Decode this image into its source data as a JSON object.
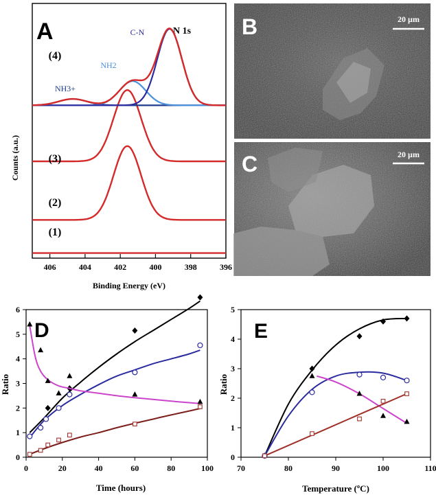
{
  "chart_data": [
    {
      "panel": "A",
      "type": "line",
      "title": "N 1s",
      "xlabel": "Binding Energy (eV)",
      "ylabel": "Counts (a.u.)",
      "xlim": [
        407,
        396
      ],
      "x_ticks": [
        "406",
        "404",
        "402",
        "400",
        "398",
        "396"
      ],
      "x_tick_values": [
        406,
        404,
        402,
        400,
        398,
        396
      ],
      "spectra": [
        {
          "label": "(1)",
          "baseline": 0.02,
          "peaks": []
        },
        {
          "label": "(2)",
          "baseline": 0.15,
          "peaks": [
            {
              "center": 401.6,
              "height": 0.29,
              "sigma": 0.78
            }
          ]
        },
        {
          "label": "(3)",
          "baseline": 0.38,
          "peaks": [
            {
              "center": 401.6,
              "height": 0.28,
              "sigma": 0.78
            }
          ]
        },
        {
          "label": "(4)",
          "baseline": 0.6,
          "peaks": [
            {
              "name": "NH3+",
              "center": 404.7,
              "height": 0.025,
              "sigma": 0.8
            },
            {
              "name": "NH2",
              "center": 401.3,
              "height": 0.095,
              "sigma": 0.75
            },
            {
              "name": "C-N",
              "center": 399.2,
              "height": 0.3,
              "sigma": 0.7
            }
          ]
        }
      ],
      "peak_labels": [
        "NH3+",
        "NH2",
        "C-N"
      ],
      "colors": {
        "envelope": "#d42a2a",
        "nh3": "#1e3a8a",
        "nh2": "#4a90d9",
        "cn": "#2b2ba0"
      }
    },
    {
      "panel": "D",
      "type": "line",
      "xlabel": "Time (hours)",
      "ylabel": "Ratio",
      "xlim": [
        0,
        100
      ],
      "ylim": [
        0,
        6
      ],
      "x_ticks": [
        "0",
        "20",
        "40",
        "60",
        "80",
        "100"
      ],
      "y_ticks": [
        "0",
        "1",
        "2",
        "3",
        "4",
        "5",
        "6"
      ],
      "series": [
        {
          "marker": "diamond-filled",
          "color": "#000000",
          "points": [
            [
              2,
              0.85
            ],
            [
              12,
              2.0
            ],
            [
              24,
              2.8
            ],
            [
              60,
              5.15
            ],
            [
              96,
              6.5
            ]
          ],
          "fit": [
            [
              2,
              1.0
            ],
            [
              10,
              1.6
            ],
            [
              20,
              2.4
            ],
            [
              30,
              3.05
            ],
            [
              40,
              3.65
            ],
            [
              50,
              4.2
            ],
            [
              60,
              4.7
            ],
            [
              70,
              5.15
            ],
            [
              80,
              5.6
            ],
            [
              90,
              6.05
            ],
            [
              96,
              6.35
            ]
          ]
        },
        {
          "marker": "circle-open",
          "color": "#2b2ba0",
          "points": [
            [
              2,
              0.85
            ],
            [
              8,
              1.2
            ],
            [
              11,
              1.55
            ],
            [
              18,
              2.0
            ],
            [
              24,
              2.55
            ],
            [
              60,
              3.45
            ],
            [
              96,
              4.55
            ]
          ],
          "fit": [
            [
              2,
              0.8
            ],
            [
              10,
              1.5
            ],
            [
              20,
              2.1
            ],
            [
              30,
              2.55
            ],
            [
              40,
              2.95
            ],
            [
              50,
              3.3
            ],
            [
              60,
              3.55
            ],
            [
              70,
              3.8
            ],
            [
              80,
              4.0
            ],
            [
              90,
              4.2
            ],
            [
              96,
              4.35
            ]
          ]
        },
        {
          "marker": "triangle-filled",
          "color": "#000000",
          "points": [
            [
              2,
              5.4
            ],
            [
              8,
              4.35
            ],
            [
              12,
              3.1
            ],
            [
              18,
              2.6
            ],
            [
              24,
              3.3
            ],
            [
              60,
              2.55
            ],
            [
              96,
              2.25
            ]
          ],
          "fit": [
            [
              2,
              5.35
            ],
            [
              5,
              4.1
            ],
            [
              8,
              3.5
            ],
            [
              12,
              3.15
            ],
            [
              18,
              2.9
            ],
            [
              24,
              2.8
            ],
            [
              30,
              2.7
            ],
            [
              40,
              2.6
            ],
            [
              50,
              2.5
            ],
            [
              60,
              2.42
            ],
            [
              70,
              2.35
            ],
            [
              80,
              2.28
            ],
            [
              90,
              2.22
            ],
            [
              96,
              2.18
            ]
          ]
        },
        {
          "marker": "square-open",
          "color": "#a0302a",
          "points": [
            [
              2,
              0.12
            ],
            [
              8,
              0.28
            ],
            [
              12,
              0.5
            ],
            [
              18,
              0.7
            ],
            [
              24,
              0.9
            ],
            [
              60,
              1.35
            ],
            [
              96,
              2.05
            ]
          ],
          "fit": [
            [
              2,
              0.12
            ],
            [
              10,
              0.35
            ],
            [
              20,
              0.6
            ],
            [
              30,
              0.82
            ],
            [
              40,
              1.0
            ],
            [
              50,
              1.2
            ],
            [
              60,
              1.38
            ],
            [
              70,
              1.55
            ],
            [
              80,
              1.72
            ],
            [
              90,
              1.88
            ],
            [
              96,
              1.98
            ]
          ]
        }
      ],
      "fit_colors": [
        "#000000",
        "#2b2ba0",
        "#cc44cc",
        "#7a1f1a"
      ]
    },
    {
      "panel": "E",
      "type": "line",
      "xlabel": "Temperature (ºC)",
      "ylabel": "Ratio",
      "xlim": [
        70,
        110
      ],
      "ylim": [
        0,
        5
      ],
      "x_ticks": [
        "70",
        "80",
        "90",
        "100",
        "110"
      ],
      "y_ticks": [
        "0",
        "1",
        "2",
        "3",
        "4",
        "5"
      ],
      "series": [
        {
          "marker": "diamond-filled",
          "color": "#000000",
          "points": [
            [
              75,
              0.05
            ],
            [
              85,
              3.0
            ],
            [
              95,
              4.1
            ],
            [
              100,
              4.6
            ],
            [
              105,
              4.7
            ]
          ],
          "fit": [
            [
              75,
              0.05
            ],
            [
              80,
              1.8
            ],
            [
              85,
              2.95
            ],
            [
              90,
              3.8
            ],
            [
              95,
              4.35
            ],
            [
              100,
              4.65
            ],
            [
              105,
              4.7
            ]
          ]
        },
        {
          "marker": "circle-open",
          "color": "#2b2ba0",
          "points": [
            [
              75,
              0.05
            ],
            [
              85,
              2.2
            ],
            [
              95,
              2.8
            ],
            [
              100,
              2.7
            ],
            [
              105,
              2.6
            ]
          ],
          "fit": [
            [
              75,
              0.05
            ],
            [
              80,
              1.4
            ],
            [
              85,
              2.3
            ],
            [
              90,
              2.75
            ],
            [
              95,
              2.88
            ],
            [
              100,
              2.85
            ],
            [
              105,
              2.6
            ]
          ]
        },
        {
          "marker": "triangle-filled",
          "color": "#000000",
          "points": [
            [
              85,
              2.75
            ],
            [
              95,
              2.15
            ],
            [
              100,
              1.4
            ],
            [
              105,
              1.2
            ]
          ],
          "fit": [
            [
              86,
              2.75
            ],
            [
              90,
              2.55
            ],
            [
              95,
              2.15
            ],
            [
              100,
              1.65
            ],
            [
              105,
              1.15
            ]
          ]
        },
        {
          "marker": "square-open",
          "color": "#a0302a",
          "points": [
            [
              75,
              0.05
            ],
            [
              85,
              0.8
            ],
            [
              95,
              1.3
            ],
            [
              100,
              1.9
            ],
            [
              105,
              2.15
            ]
          ],
          "fit": [
            [
              75,
              0.05
            ],
            [
              85,
              0.75
            ],
            [
              95,
              1.45
            ],
            [
              105,
              2.15
            ]
          ]
        }
      ],
      "fit_colors": [
        "#000000",
        "#2b2ba0",
        "#cc44cc",
        "#a0302a"
      ]
    }
  ],
  "images": [
    {
      "panel": "B",
      "scale_bar": "20 µm"
    },
    {
      "panel": "C",
      "scale_bar": "20 µm"
    }
  ]
}
